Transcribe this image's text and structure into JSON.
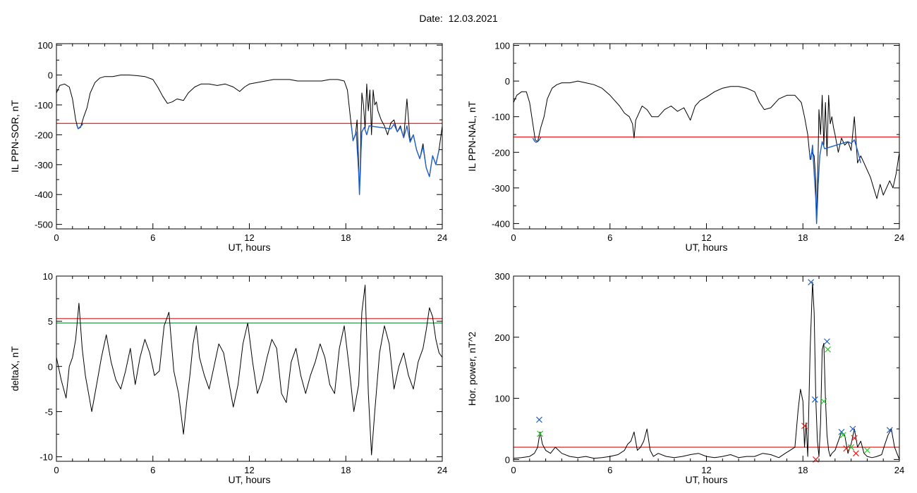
{
  "title": {
    "label": "Date:",
    "value": "12.03.2021"
  },
  "chart_data": [
    {
      "type": "line",
      "id": "sor",
      "xlabel": "UT, hours",
      "ylabel": "IL PPN-SOR, nT",
      "xlim": [
        0,
        24
      ],
      "ylim": [
        -515,
        105
      ],
      "xticks": [
        0,
        6,
        12,
        18,
        24
      ],
      "yticks": [
        -500,
        -400,
        -300,
        -200,
        -100,
        0,
        100
      ],
      "threshold": {
        "value": -162,
        "color": "#e02020"
      },
      "series": [
        {
          "color": "#000000",
          "x": [
            0,
            0.2,
            0.5,
            0.8,
            1.0,
            1.2,
            1.35,
            1.5,
            1.7,
            1.9,
            2.1,
            2.4,
            2.7,
            3.0,
            3.5,
            4.0,
            4.5,
            5.0,
            5.5,
            6.0,
            6.3,
            6.6,
            6.9,
            7.2,
            7.5,
            7.9,
            8.2,
            8.6,
            9.0,
            9.5,
            10.0,
            10.5,
            11.0,
            11.4,
            11.7,
            12.0,
            12.5,
            13.0,
            13.5,
            14.0,
            14.5,
            15.0,
            15.5,
            16.0,
            16.5,
            17.0,
            17.5,
            17.9,
            18.1,
            18.3,
            18.45,
            18.6,
            18.7,
            18.8,
            18.85,
            18.9,
            18.95,
            19.0,
            19.1,
            19.2,
            19.3,
            19.4,
            19.5,
            19.6,
            19.7,
            19.8,
            19.9,
            20.0,
            20.2,
            20.4,
            20.6,
            20.8,
            21.0,
            21.2,
            21.4,
            21.6,
            21.8,
            22.0,
            22.2,
            22.4,
            22.6,
            22.8,
            23.0,
            23.2,
            23.4,
            23.6,
            23.8,
            24.0
          ],
          "y": [
            -60,
            -35,
            -30,
            -40,
            -80,
            -150,
            -180,
            -175,
            -140,
            -110,
            -60,
            -25,
            -10,
            -5,
            -5,
            0,
            0,
            -2,
            -5,
            -15,
            -40,
            -70,
            -95,
            -90,
            -80,
            -85,
            -60,
            -40,
            -30,
            -30,
            -35,
            -30,
            -40,
            -55,
            -40,
            -30,
            -25,
            -20,
            -15,
            -15,
            -15,
            -20,
            -20,
            -20,
            -20,
            -15,
            -15,
            -20,
            -50,
            -150,
            -220,
            -200,
            -150,
            -300,
            -400,
            -300,
            -150,
            -60,
            -100,
            -180,
            -30,
            -120,
            -50,
            -200,
            -50,
            -100,
            -90,
            -120,
            -150,
            -170,
            -200,
            -160,
            -150,
            -190,
            -170,
            -210,
            -80,
            -220,
            -200,
            -250,
            -280,
            -230,
            -310,
            -340,
            -270,
            -300,
            -250,
            -170
          ]
        },
        {
          "color": "#2060c8",
          "x": [
            1.25,
            1.35,
            1.45,
            1.55,
            1.65,
            18.35,
            18.45,
            18.55,
            18.65,
            18.7,
            18.75,
            18.8,
            18.85,
            18.9,
            18.95,
            19.0,
            19.15,
            19.3,
            19.45,
            20.8,
            21.0,
            21.2,
            21.4,
            21.6,
            21.8,
            22.0,
            22.2,
            22.4,
            22.6,
            22.8,
            23.0,
            23.2,
            23.4,
            23.6,
            23.8
          ],
          "y": [
            -165,
            -180,
            -175,
            -170,
            -163,
            -170,
            -220,
            -205,
            -190,
            -240,
            -280,
            -330,
            -400,
            -330,
            -250,
            -190,
            -175,
            -200,
            -170,
            -180,
            -165,
            -190,
            -175,
            -210,
            -170,
            -225,
            -200,
            -250,
            -280,
            -240,
            -310,
            -340,
            -270,
            -300,
            -250
          ]
        }
      ]
    },
    {
      "type": "line",
      "id": "nal",
      "xlabel": "UT, hours",
      "ylabel": "IL PPN-NAL, nT",
      "xlim": [
        0,
        24
      ],
      "ylim": [
        -415,
        105
      ],
      "xticks": [
        0,
        6,
        12,
        18,
        24
      ],
      "yticks": [
        -400,
        -300,
        -200,
        -100,
        0,
        100
      ],
      "threshold": {
        "value": -157,
        "color": "#e02020"
      },
      "series": [
        {
          "color": "#000000",
          "x": [
            0,
            0.2,
            0.5,
            0.8,
            1.0,
            1.2,
            1.35,
            1.5,
            1.7,
            1.9,
            2.1,
            2.4,
            2.7,
            3.0,
            3.5,
            4.0,
            4.5,
            5.0,
            5.5,
            6.0,
            6.3,
            6.6,
            6.9,
            7.2,
            7.4,
            7.5,
            7.6,
            7.8,
            8.0,
            8.3,
            8.6,
            9.0,
            9.4,
            9.8,
            10.2,
            10.6,
            11.0,
            11.3,
            11.6,
            12.0,
            12.5,
            13.0,
            13.5,
            14.0,
            14.5,
            15.0,
            15.3,
            15.6,
            16.0,
            16.5,
            17.0,
            17.5,
            17.9,
            18.1,
            18.3,
            18.45,
            18.6,
            18.7,
            18.8,
            18.85,
            18.9,
            18.95,
            19.0,
            19.1,
            19.2,
            19.3,
            19.4,
            19.5,
            19.6,
            19.7,
            19.8,
            19.9,
            20.0,
            20.2,
            20.4,
            20.6,
            20.8,
            21.0,
            21.2,
            21.4,
            21.6,
            21.8,
            22.0,
            22.2,
            22.4,
            22.6,
            22.8,
            23.0,
            23.2,
            23.4,
            23.6,
            23.8,
            24.0
          ],
          "y": [
            -60,
            -40,
            -30,
            -30,
            -60,
            -120,
            -165,
            -170,
            -130,
            -100,
            -50,
            -20,
            -10,
            -5,
            -5,
            0,
            -5,
            -10,
            -20,
            -40,
            -55,
            -70,
            -90,
            -100,
            -120,
            -160,
            -110,
            -90,
            -70,
            -80,
            -100,
            -100,
            -80,
            -70,
            -85,
            -75,
            -110,
            -70,
            -55,
            -45,
            -30,
            -20,
            -15,
            -15,
            -20,
            -30,
            -60,
            -80,
            -75,
            -50,
            -40,
            -40,
            -60,
            -100,
            -150,
            -220,
            -200,
            -210,
            -280,
            -400,
            -300,
            -200,
            -80,
            -150,
            -40,
            -180,
            -60,
            -210,
            -40,
            -120,
            -100,
            -130,
            -150,
            -200,
            -160,
            -180,
            -170,
            -195,
            -100,
            -230,
            -210,
            -230,
            -250,
            -270,
            -300,
            -330,
            -290,
            -320,
            -300,
            -280,
            -300,
            -260,
            -200
          ]
        },
        {
          "color": "#2060c8",
          "x": [
            1.2,
            1.3,
            1.4,
            1.5,
            1.6,
            1.7,
            18.4,
            18.5,
            18.6,
            18.7,
            18.8,
            18.85,
            18.9,
            18.95,
            19.05,
            19.2,
            19.35,
            20.8,
            21.0,
            21.2,
            21.4,
            21.6
          ],
          "y": [
            -160,
            -168,
            -172,
            -170,
            -165,
            -158,
            -200,
            -220,
            -180,
            -260,
            -330,
            -400,
            -350,
            -290,
            -210,
            -170,
            -190,
            -170,
            -175,
            -165,
            -195,
            -230
          ]
        }
      ]
    },
    {
      "type": "line",
      "id": "deltax",
      "xlabel": "UT, hours",
      "ylabel": "deltaX, nT",
      "xlim": [
        0,
        24
      ],
      "ylim": [
        -10.5,
        10
      ],
      "xticks": [
        0,
        6,
        12,
        18,
        24
      ],
      "yticks": [
        -10,
        -5,
        0,
        5,
        10
      ],
      "threshold": {
        "value": 5.3,
        "color": "#e02020"
      },
      "threshold2": {
        "value": 4.8,
        "color": "#208040"
      },
      "series": [
        {
          "color": "#000000",
          "x": [
            0,
            0.3,
            0.6,
            0.8,
            1.0,
            1.2,
            1.4,
            1.6,
            1.8,
            2.0,
            2.2,
            2.5,
            2.8,
            3.1,
            3.4,
            3.7,
            4.0,
            4.3,
            4.6,
            4.9,
            5.2,
            5.5,
            5.8,
            6.1,
            6.4,
            6.7,
            7.0,
            7.3,
            7.6,
            7.9,
            8.1,
            8.3,
            8.5,
            8.7,
            8.9,
            9.2,
            9.5,
            9.8,
            10.1,
            10.4,
            10.7,
            11.0,
            11.3,
            11.6,
            11.9,
            12.2,
            12.5,
            12.8,
            13.1,
            13.4,
            13.7,
            14.0,
            14.3,
            14.6,
            14.9,
            15.2,
            15.5,
            15.8,
            16.1,
            16.4,
            16.7,
            17.0,
            17.3,
            17.6,
            17.9,
            18.2,
            18.5,
            18.8,
            19.0,
            19.2,
            19.4,
            19.6,
            19.8,
            20.1,
            20.4,
            20.7,
            21.0,
            21.3,
            21.6,
            21.9,
            22.2,
            22.5,
            22.8,
            23.0,
            23.2,
            23.4,
            23.6,
            23.8,
            24.0
          ],
          "y": [
            1,
            -1.5,
            -3.5,
            0,
            1,
            3,
            7,
            2,
            -1,
            -3,
            -5,
            -2,
            1,
            3.5,
            0.5,
            -1.5,
            -2.5,
            -0.5,
            2,
            -2,
            1,
            3,
            1.5,
            -1,
            -0.5,
            4.5,
            6,
            -0.5,
            -3,
            -7.5,
            -4,
            -1,
            2.5,
            4.5,
            1,
            -1,
            -2.5,
            0,
            2.5,
            1.5,
            -1.5,
            -4.5,
            -2,
            2.5,
            4.8,
            0.5,
            -3,
            -1.5,
            1,
            3,
            2,
            -3,
            -4,
            0.5,
            2,
            -1,
            -3,
            -1,
            0.5,
            2.5,
            1,
            -2,
            -3,
            2,
            4.5,
            0,
            -5,
            -2,
            6,
            9,
            -3,
            -9.8,
            -5,
            1.5,
            4.5,
            2.5,
            -2.5,
            0,
            1.5,
            -1,
            -2.5,
            0.5,
            2,
            4,
            6.5,
            5.5,
            3,
            1.5,
            1
          ]
        }
      ]
    },
    {
      "type": "line",
      "id": "horpower",
      "xlabel": "UT, hours",
      "ylabel": "Hor. power, nT^2",
      "xlim": [
        0,
        24
      ],
      "ylim": [
        -3,
        300
      ],
      "xticks": [
        0,
        6,
        12,
        18,
        24
      ],
      "yticks": [
        0,
        100,
        200,
        300
      ],
      "threshold": {
        "value": 20,
        "color": "#e02020"
      },
      "series": [
        {
          "color": "#000000",
          "x": [
            0,
            0.5,
            1.0,
            1.3,
            1.5,
            1.65,
            1.8,
            2.0,
            2.3,
            2.6,
            3.0,
            3.5,
            4.0,
            4.5,
            5.0,
            5.5,
            6.0,
            6.5,
            6.9,
            7.1,
            7.3,
            7.5,
            7.7,
            7.9,
            8.1,
            8.3,
            8.5,
            8.7,
            9.0,
            9.5,
            10.0,
            10.5,
            11.0,
            11.5,
            12.0,
            12.5,
            13.0,
            13.5,
            14.0,
            14.5,
            15.0,
            15.5,
            16.0,
            16.5,
            16.9,
            17.2,
            17.5,
            17.7,
            17.85,
            18.0,
            18.1,
            18.2,
            18.3,
            18.45,
            18.6,
            18.7,
            18.8,
            18.9,
            19.0,
            19.1,
            19.2,
            19.3,
            19.4,
            19.5,
            19.6,
            19.7,
            19.8,
            20.0,
            20.2,
            20.4,
            20.6,
            20.8,
            21.0,
            21.2,
            21.4,
            21.6,
            21.8,
            22.0,
            22.3,
            22.6,
            22.9,
            23.1,
            23.3,
            23.5,
            23.7,
            24.0
          ],
          "y": [
            2,
            3,
            5,
            10,
            20,
            45,
            25,
            15,
            10,
            20,
            10,
            5,
            3,
            5,
            2,
            3,
            5,
            8,
            15,
            25,
            30,
            45,
            15,
            20,
            30,
            50,
            15,
            5,
            10,
            5,
            3,
            5,
            8,
            10,
            5,
            3,
            5,
            8,
            3,
            5,
            5,
            10,
            8,
            3,
            10,
            15,
            20,
            80,
            115,
            95,
            20,
            60,
            5,
            180,
            290,
            240,
            100,
            30,
            5,
            60,
            180,
            190,
            100,
            40,
            15,
            5,
            10,
            15,
            30,
            45,
            40,
            10,
            25,
            50,
            20,
            30,
            10,
            5,
            3,
            5,
            8,
            25,
            40,
            50,
            20,
            0
          ]
        }
      ],
      "markers": {
        "blue": {
          "color": "#2060c8",
          "points": [
            [
              1.6,
              65
            ],
            [
              18.5,
              290
            ],
            [
              18.75,
              98
            ],
            [
              19.5,
              193
            ],
            [
              20.4,
              45
            ],
            [
              21.1,
              50
            ],
            [
              23.4,
              48
            ]
          ]
        },
        "green": {
          "color": "#30c030",
          "points": [
            [
              1.65,
              42
            ],
            [
              19.3,
              95
            ],
            [
              19.55,
              180
            ],
            [
              20.5,
              40
            ],
            [
              21.0,
              20
            ],
            [
              22.0,
              15
            ]
          ]
        },
        "red": {
          "color": "#e02020",
          "points": [
            [
              18.1,
              55
            ],
            [
              18.8,
              0
            ],
            [
              20.7,
              18
            ],
            [
              21.2,
              35
            ],
            [
              21.3,
              10
            ]
          ]
        }
      }
    }
  ]
}
